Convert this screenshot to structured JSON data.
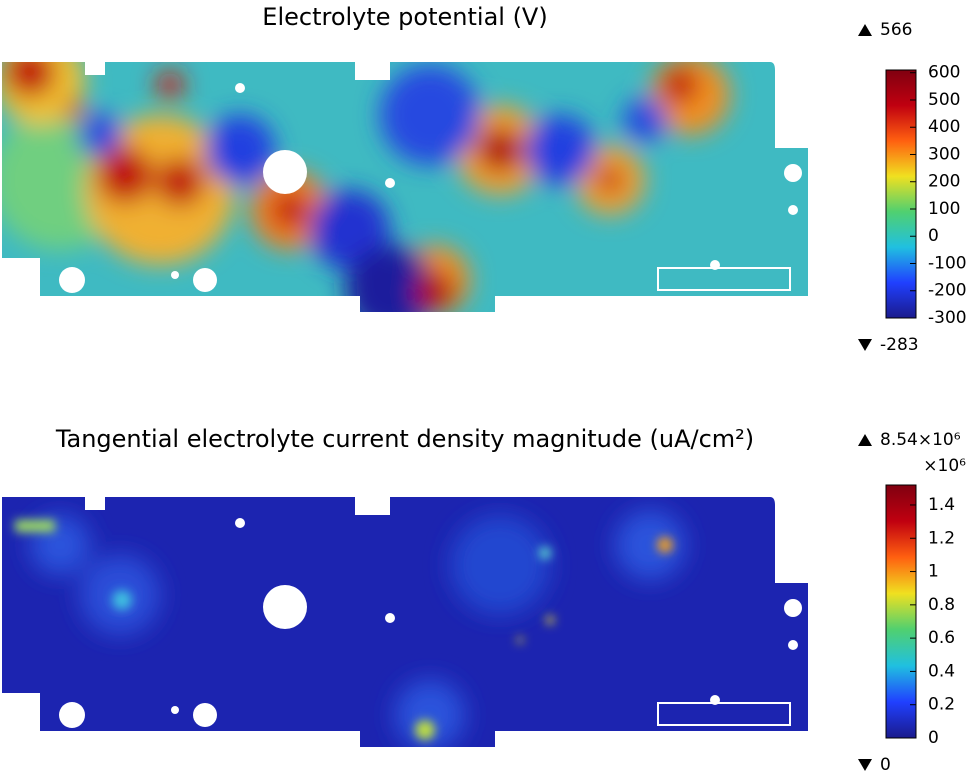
{
  "chart_data": [
    {
      "type": "surface",
      "title": "Electrolyte potential (V)",
      "max": 566,
      "min": -283,
      "clim": [
        -300,
        610
      ],
      "cticks": [
        -300,
        -200,
        -100,
        0,
        100,
        200,
        300,
        400,
        500,
        600
      ],
      "colormap": [
        "#1a1a8c",
        "#2040ff",
        "#20c0e0",
        "#50d070",
        "#f0e020",
        "#ff6010",
        "#c00010",
        "#800010"
      ]
    },
    {
      "type": "surface",
      "title": "Tangential electrolyte current density magnitude (uA/cm²)",
      "max": {
        "value": 8.54,
        "label": "8.54×10⁶"
      },
      "min": 0,
      "multiplier": "×10⁶",
      "clim": [
        0,
        1.52
      ],
      "cticks": [
        0,
        0.2,
        0.4,
        0.6,
        0.8,
        1,
        1.2,
        1.4
      ],
      "colormap": [
        "#1a1a8c",
        "#2040ff",
        "#20c0e0",
        "#50d070",
        "#f0e020",
        "#ff6010",
        "#c00010",
        "#800010"
      ]
    }
  ]
}
